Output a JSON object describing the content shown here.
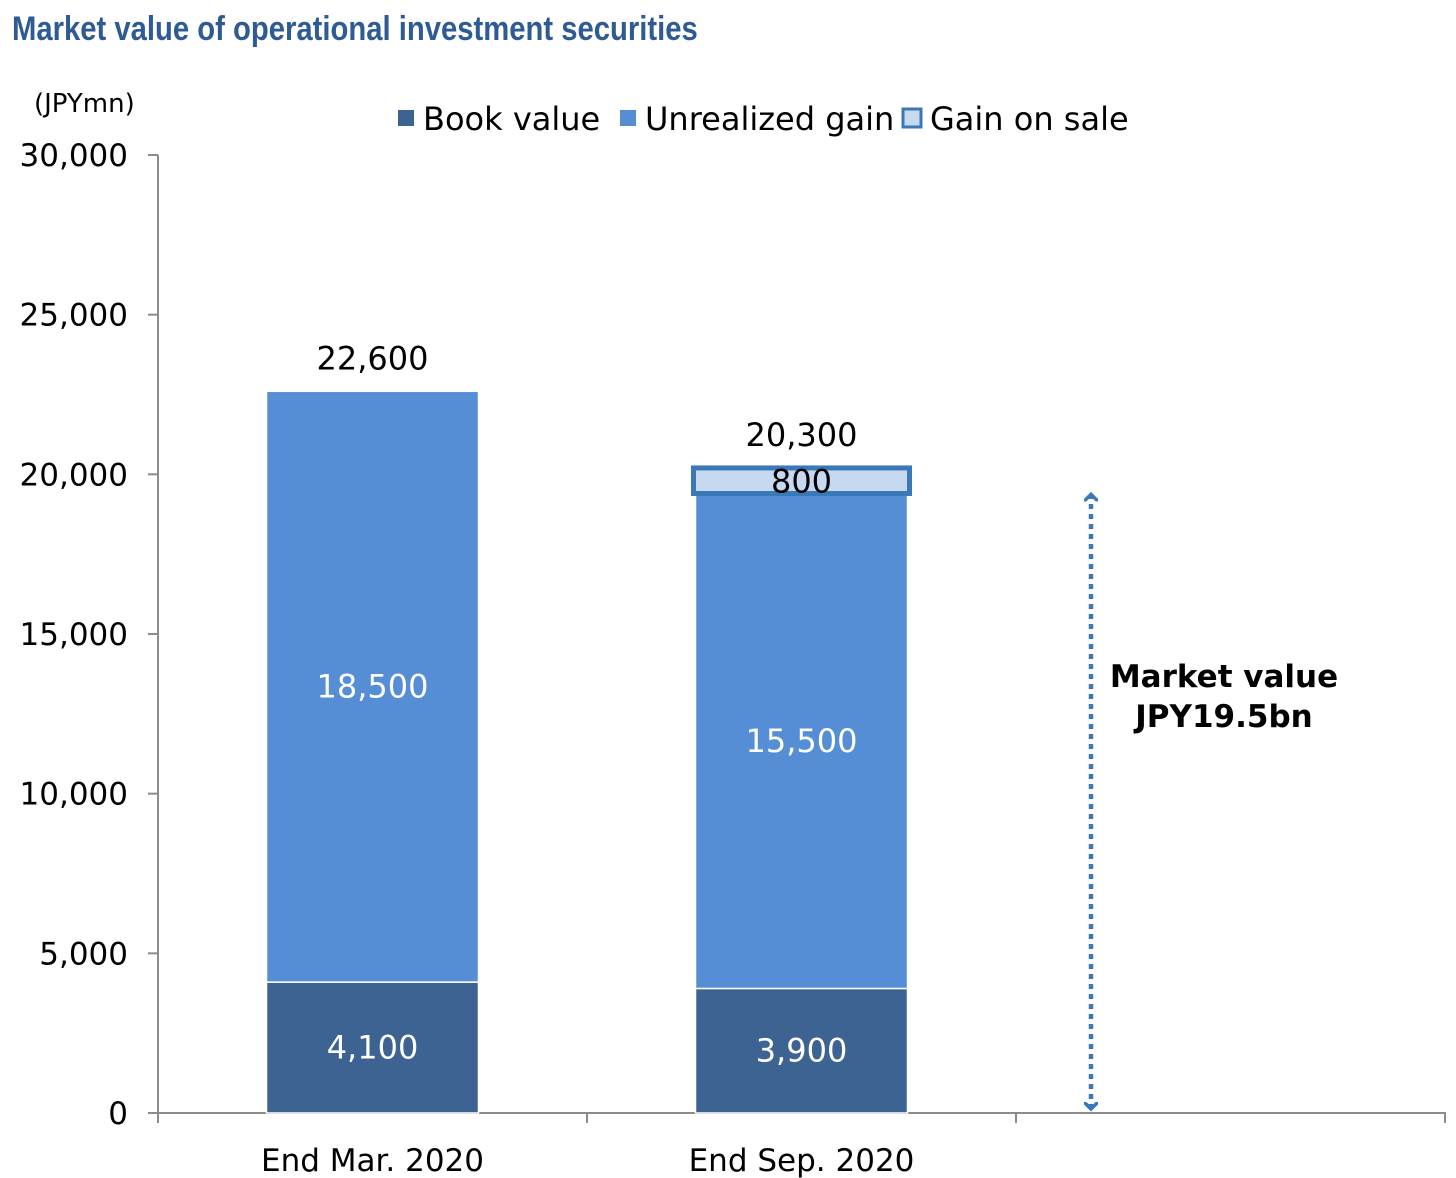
{
  "colors": {
    "book_value": "#3d6393",
    "unrealized_gain": "#558ed5",
    "gain_on_sale_fill": "#c6d9f1",
    "gain_on_sale_border": "#3a78b8",
    "title": "#2e5b93",
    "arrow": "#3a78b8"
  },
  "chart_data": {
    "type": "bar",
    "stacked": true,
    "title": "Market value of operational investment securities",
    "unit_label": "(JPYmn)",
    "categories": [
      "End Mar. 2020",
      "End Sep. 2020"
    ],
    "series": [
      {
        "name": "Book value",
        "values": [
          4100,
          3900
        ],
        "data_labels": [
          "4,100",
          "3,900"
        ]
      },
      {
        "name": "Unrealized gain",
        "values": [
          18500,
          15500
        ],
        "data_labels": [
          "18,500",
          "15,500"
        ]
      },
      {
        "name": "Gain on sale",
        "values": [
          0,
          800
        ],
        "data_labels": [
          "",
          "800"
        ]
      }
    ],
    "totals": [
      "22,600",
      "20,300"
    ],
    "ylim": [
      0,
      30000
    ],
    "yticks": [
      0,
      5000,
      10000,
      15000,
      20000,
      25000,
      30000
    ],
    "ytick_labels": [
      "0",
      "5,000",
      "10,000",
      "15,000",
      "20,000",
      "25,000",
      "30,000"
    ],
    "legend_position": "top",
    "grid": false,
    "annotation": {
      "lines": [
        "Market value",
        "JPY19.5bn"
      ],
      "range": [
        0,
        19500
      ]
    }
  }
}
